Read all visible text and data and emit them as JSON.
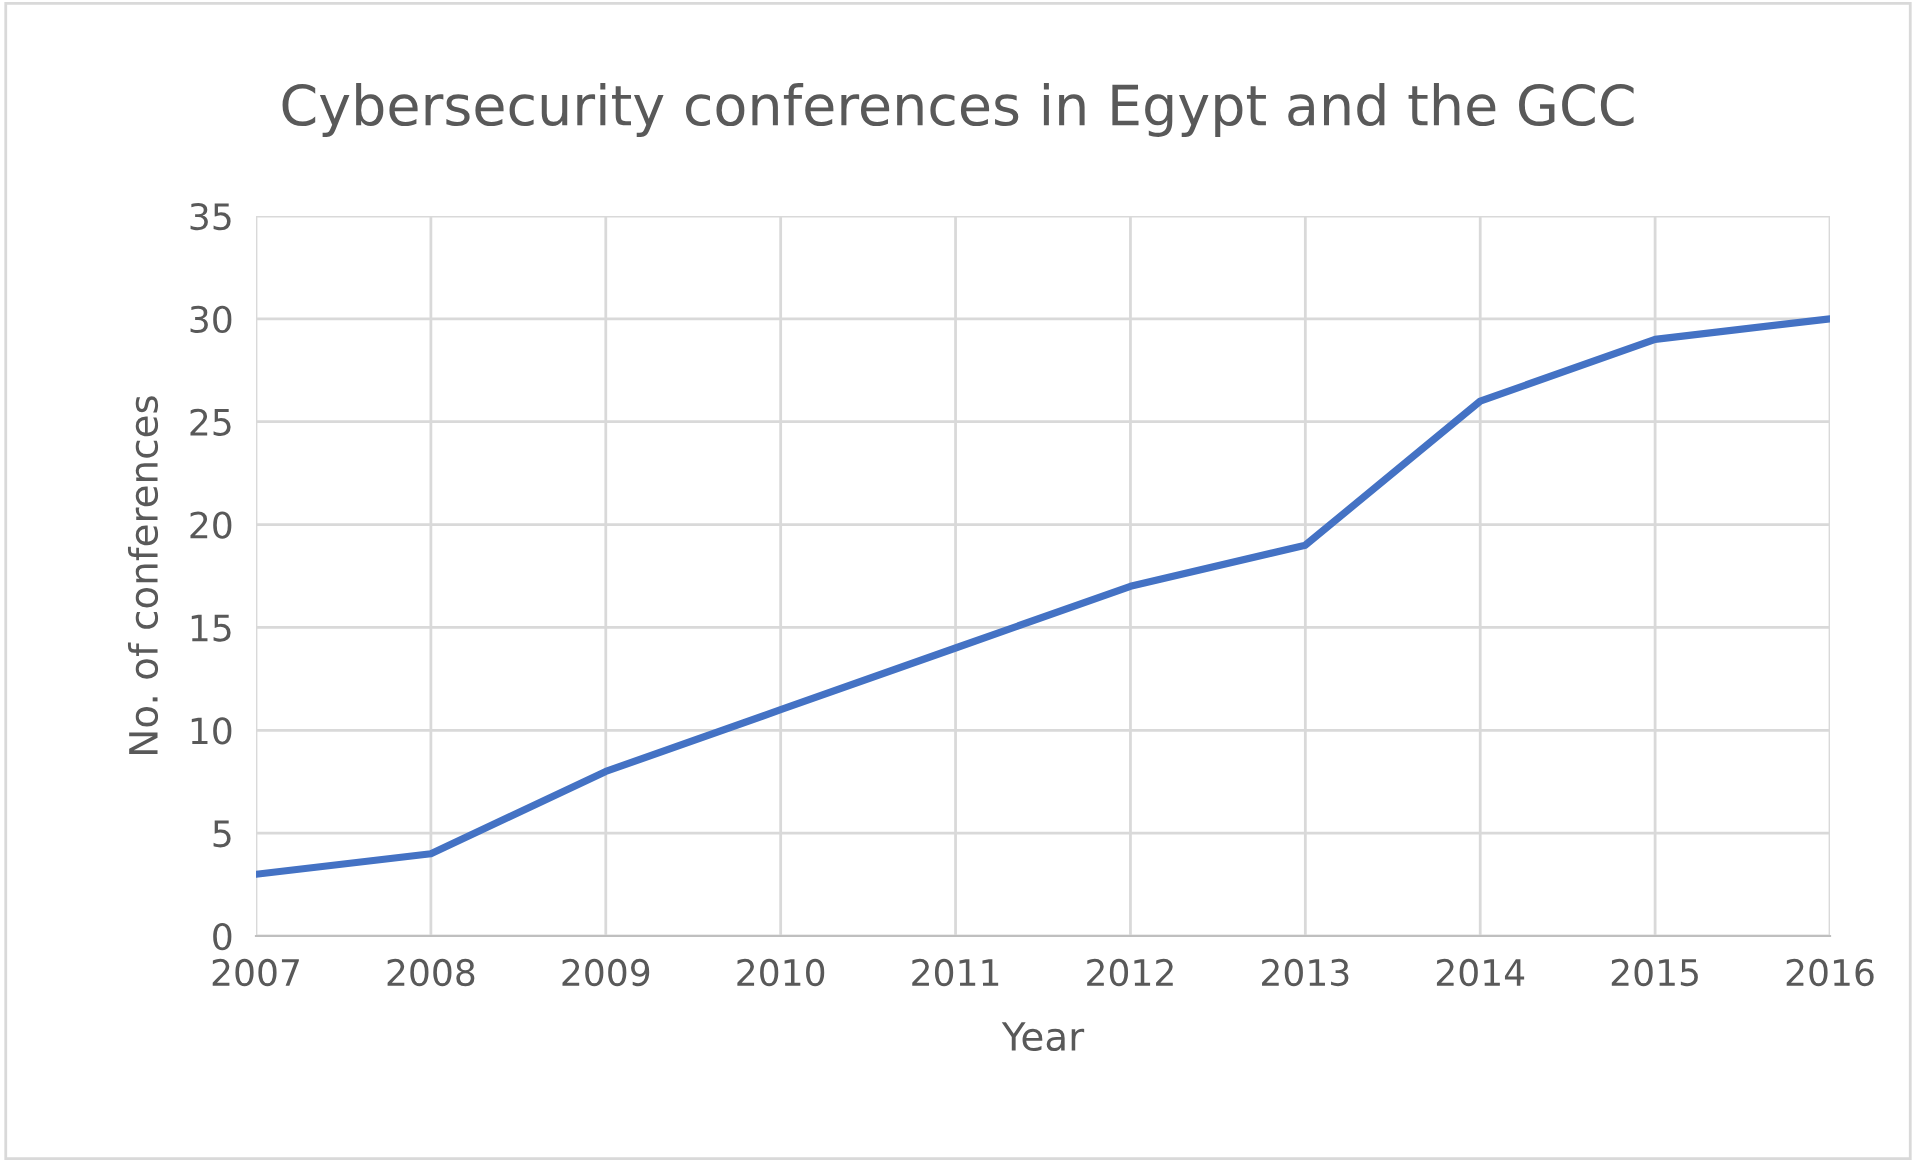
{
  "chart_data": {
    "type": "line",
    "title": "Cybersecurity conferences in Egypt and the GCC",
    "xlabel": "Year",
    "ylabel": "No. of conferences",
    "x": [
      2007,
      2008,
      2009,
      2010,
      2011,
      2012,
      2013,
      2014,
      2015,
      2016
    ],
    "series": [
      {
        "color": "#4472c4",
        "values": [
          3,
          4,
          8,
          11,
          14,
          17,
          19,
          26,
          29,
          30
        ]
      }
    ],
    "xlim": [
      2007,
      2016
    ],
    "xticks": [
      2007,
      2008,
      2009,
      2010,
      2011,
      2012,
      2013,
      2014,
      2015,
      2016
    ],
    "ylim": [
      0,
      35
    ],
    "yticks": [
      0,
      5,
      10,
      15,
      20,
      25,
      30,
      35
    ],
    "grid": true,
    "legend": false,
    "marker": "none",
    "line_style": "solid"
  }
}
